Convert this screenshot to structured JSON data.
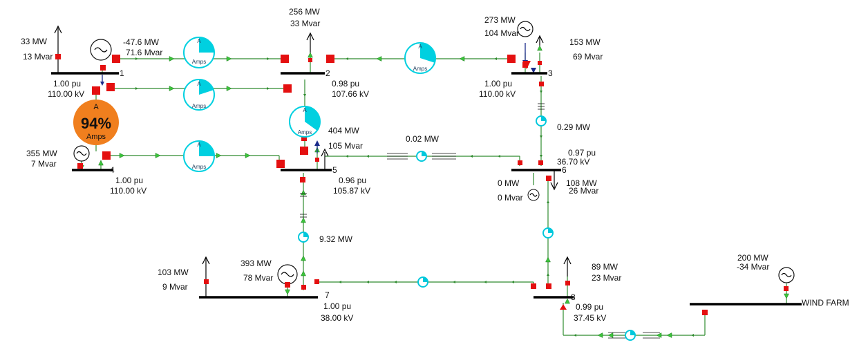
{
  "buses": [
    {
      "id": "bus1",
      "number": "1",
      "pu": "1.00 pu",
      "kv": "110.00 kV"
    },
    {
      "id": "bus2",
      "number": "2",
      "pu": "0.98 pu",
      "kv": "107.66 kV"
    },
    {
      "id": "bus3",
      "number": "3",
      "pu": "1.00 pu",
      "kv": "110.00 kV"
    },
    {
      "id": "bus4",
      "number": "4",
      "pu": "1.00 pu",
      "kv": "110.00 kV"
    },
    {
      "id": "bus5",
      "number": "5",
      "pu": "0.96 pu",
      "kv": "105.87 kV"
    },
    {
      "id": "bus6",
      "number": "6",
      "pu": "0.97 pu",
      "kv": "36.70 kV"
    },
    {
      "id": "bus7",
      "number": "7",
      "pu": "1.00 pu",
      "kv": "38.00 kV"
    },
    {
      "id": "bus8",
      "number": "8",
      "pu": "0.99 pu",
      "kv": "37.45 kV"
    },
    {
      "id": "wind",
      "number": "WIND FARM",
      "pu": "",
      "kv": ""
    }
  ],
  "gen_flows": [
    {
      "id": "gen1",
      "mw": "-47.6 MW",
      "mvar": "71.6 Mvar"
    },
    {
      "id": "gen3",
      "mw": "273 MW",
      "mvar": "104 Mvar"
    },
    {
      "id": "gen4",
      "mw": "355 MW",
      "mvar": "7 Mvar"
    },
    {
      "id": "gen6",
      "mw": "0 MW",
      "mvar": "0 Mvar"
    },
    {
      "id": "gen7",
      "mw": "393 MW",
      "mvar": "78 Mvar"
    },
    {
      "id": "genw",
      "mw": "200 MW",
      "mvar": "-34 Mvar"
    }
  ],
  "loads": [
    {
      "id": "load1",
      "mw": "33 MW",
      "mvar": "13 Mvar"
    },
    {
      "id": "load2",
      "mw": "256 MW",
      "mvar": "33 Mvar"
    },
    {
      "id": "load3",
      "mw": "153 MW",
      "mvar": "69 Mvar"
    },
    {
      "id": "load5",
      "mw": "404 MW",
      "mvar": "105 Mvar"
    },
    {
      "id": "load6",
      "mw": "108 MW",
      "mvar": "26 Mvar"
    },
    {
      "id": "load7",
      "mw": "103 MW",
      "mvar": "9 Mvar"
    },
    {
      "id": "load8",
      "mw": "89 MW",
      "mvar": "23 Mvar"
    }
  ],
  "branch_flows": {
    "xf35": "0.29 MW",
    "line56": "0.02 MW",
    "xf57": "9.32 MW"
  },
  "amp_gauges": {
    "small_letter": "A",
    "small_unit": "Amps",
    "overload": {
      "letter": "A",
      "percent": "94%",
      "unit": "Amps",
      "fill_fraction": 0.94,
      "color": "#f07f1e"
    },
    "fills": {
      "l12a": 0.25,
      "l12b": 0.2,
      "l23": 0.3,
      "l25": 0.35,
      "l45": 0.25
    }
  },
  "colors": {
    "bus": "#000000",
    "wire": "#2e8b2e",
    "breaker": "#e41010",
    "gauge": "#00d0e0"
  }
}
